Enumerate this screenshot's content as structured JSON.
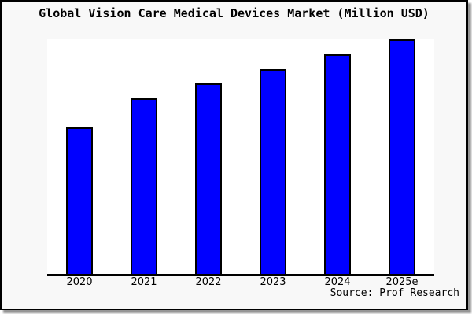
{
  "title": "Global Vision Care Medical Devices Market (Million USD)",
  "source": "Source: Prof Research",
  "colors": {
    "figure_background": "#f8f8f8",
    "plot_background": "#ffffff",
    "bar_fill": "#0000ff",
    "bar_edge": "#000000",
    "axis_line": "#000000",
    "border": "#000000",
    "shadow": "#969696"
  },
  "chart_data": {
    "type": "bar",
    "title": "Global Vision Care Medical Devices Market (Million USD)",
    "categories": [
      "2020",
      "2021",
      "2022",
      "2023",
      "2024",
      "2025e"
    ],
    "values": [
      62.5,
      74.9,
      81.3,
      87.3,
      93.6,
      100
    ],
    "values_unit": "relative bar height, % of 2025e bar (no numeric y-axis shown in image)",
    "xlabel": "",
    "ylabel": "",
    "ylim": [
      0,
      100
    ],
    "grid": false,
    "legend": null,
    "y_axis_ticks_shown": false,
    "bar_color": "#0000ff",
    "bar_edge_color": "#000000",
    "annotations": [
      "Source: Prof Research"
    ]
  }
}
